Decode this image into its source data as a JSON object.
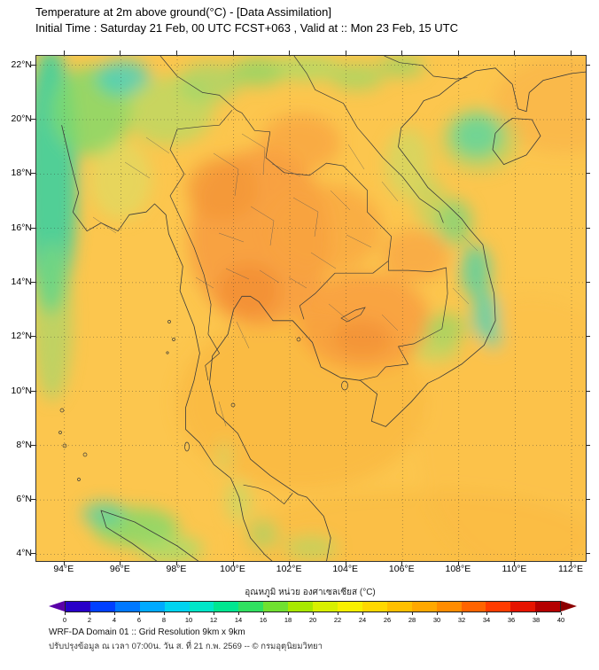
{
  "header": {
    "title_line1": "Temperature at 2m above ground(°C) - [Data Assimilation]",
    "title_line2": "Initial Time : Saturday 21 Feb, 00 UTC FCST+063 , Valid at :: Mon 23 Feb, 15 UTC"
  },
  "map": {
    "lat_ticks": [
      "22°N",
      "20°N",
      "18°N",
      "16°N",
      "14°N",
      "12°N",
      "10°N",
      "8°N",
      "6°N",
      "4°N"
    ],
    "lon_ticks": [
      "94°E",
      "96°E",
      "98°E",
      "100°E",
      "102°E",
      "104°E",
      "106°E",
      "108°E",
      "110°E",
      "112°E"
    ],
    "field_colors": {
      "sea_base": "#fcc64e",
      "warm_orange": "#f79b3e",
      "hot_core": "#f28f35",
      "cool_green": "#7ed96b",
      "cold_cyan": "#3fd0c0"
    }
  },
  "colorbar": {
    "label": "อุณหภูมิ หน่วย องศาเซลเซียส (°C)",
    "units": "°C",
    "min": 0,
    "max": 40,
    "ticks": [
      "0",
      "2",
      "4",
      "6",
      "8",
      "10",
      "12",
      "14",
      "16",
      "18",
      "20",
      "22",
      "24",
      "26",
      "28",
      "30",
      "32",
      "34",
      "36",
      "38",
      "40"
    ],
    "segment_colors": [
      "#2800c8",
      "#0040ff",
      "#0078ff",
      "#00aaff",
      "#00d4f0",
      "#00e6c8",
      "#00e690",
      "#30e060",
      "#70e030",
      "#a8e800",
      "#d8f000",
      "#f8f000",
      "#ffd800",
      "#ffc000",
      "#ffa800",
      "#ff8c00",
      "#ff6400",
      "#ff3c00",
      "#e61400",
      "#b40000"
    ],
    "left_arrow_color": "#5a00a8",
    "right_arrow_color": "#8c0000"
  },
  "footer": {
    "line1": "WRF-DA Domain 01 :: Grid Resolution 9km x 9km",
    "line2": "ปรับปรุงข้อมูล ณ เวลา 07:00น. วัน ส. ที่ 21 ก.พ. 2569 -- © กรมอุตุนิยมวิทยา"
  }
}
